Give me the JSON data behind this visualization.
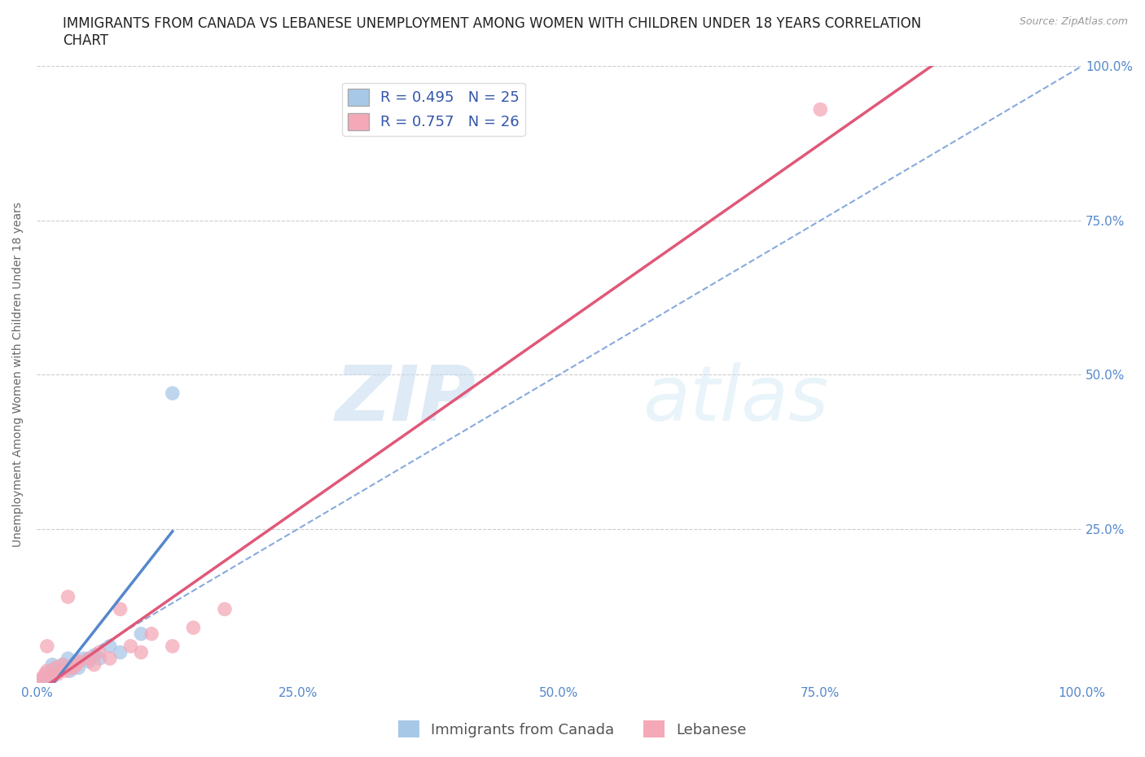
{
  "title_line1": "IMMIGRANTS FROM CANADA VS LEBANESE UNEMPLOYMENT AMONG WOMEN WITH CHILDREN UNDER 18 YEARS CORRELATION",
  "title_line2": "CHART",
  "source": "Source: ZipAtlas.com",
  "ylabel": "Unemployment Among Women with Children Under 18 years",
  "canada_x": [
    0.0,
    0.005,
    0.008,
    0.01,
    0.012,
    0.015,
    0.015,
    0.018,
    0.02,
    0.022,
    0.025,
    0.028,
    0.03,
    0.032,
    0.035,
    0.038,
    0.04,
    0.045,
    0.05,
    0.055,
    0.06,
    0.07,
    0.08,
    0.1,
    0.13
  ],
  "canada_y": [
    0.0,
    0.005,
    0.01,
    0.015,
    0.008,
    0.02,
    0.03,
    0.015,
    0.025,
    0.02,
    0.03,
    0.025,
    0.04,
    0.02,
    0.03,
    0.035,
    0.025,
    0.04,
    0.035,
    0.045,
    0.04,
    0.06,
    0.05,
    0.08,
    0.47
  ],
  "lebanese_x": [
    0.0,
    0.005,
    0.008,
    0.01,
    0.01,
    0.015,
    0.018,
    0.02,
    0.025,
    0.028,
    0.03,
    0.035,
    0.038,
    0.04,
    0.05,
    0.055,
    0.06,
    0.07,
    0.08,
    0.09,
    0.1,
    0.11,
    0.13,
    0.15,
    0.18,
    0.75
  ],
  "lebanese_y": [
    0.0,
    0.008,
    0.015,
    0.02,
    0.06,
    0.01,
    0.025,
    0.015,
    0.03,
    0.02,
    0.14,
    0.025,
    0.03,
    0.035,
    0.04,
    0.03,
    0.05,
    0.04,
    0.12,
    0.06,
    0.05,
    0.08,
    0.06,
    0.09,
    0.12,
    0.93
  ],
  "canada_R": 0.495,
  "canada_N": 25,
  "lebanese_R": 0.757,
  "lebanese_N": 26,
  "canada_color": "#a8c8e8",
  "lebanese_color": "#f4a8b8",
  "canada_line_color": "#5588cc",
  "lebanese_line_color": "#e05878",
  "diag_line_color": "#88aadd",
  "diag_line_style": "--",
  "xlim": [
    0.0,
    1.0
  ],
  "ylim": [
    0.0,
    1.0
  ],
  "xticks": [
    0.0,
    0.25,
    0.5,
    0.75,
    1.0
  ],
  "yticks": [
    0.0,
    0.25,
    0.5,
    0.75,
    1.0
  ],
  "xtick_labels_bottom": [
    "0.0%",
    "25.0%",
    "50.0%",
    "75.0%",
    "100.0%"
  ],
  "ytick_labels_right": [
    "",
    "25.0%",
    "50.0%",
    "75.0%",
    "100.0%"
  ],
  "grid_color": "#cccccc",
  "background_color": "#ffffff",
  "watermark_zip": "ZIP",
  "watermark_atlas": "atlas",
  "legend_label_canada": "Immigrants from Canada",
  "legend_label_lebanese": "Lebanese",
  "title_fontsize": 12,
  "axis_label_fontsize": 10,
  "tick_fontsize": 11,
  "legend_fontsize": 13,
  "right_tick_color": "#5588cc",
  "bottom_tick_color": "#5588cc",
  "legend_text_color": "#3355aa"
}
